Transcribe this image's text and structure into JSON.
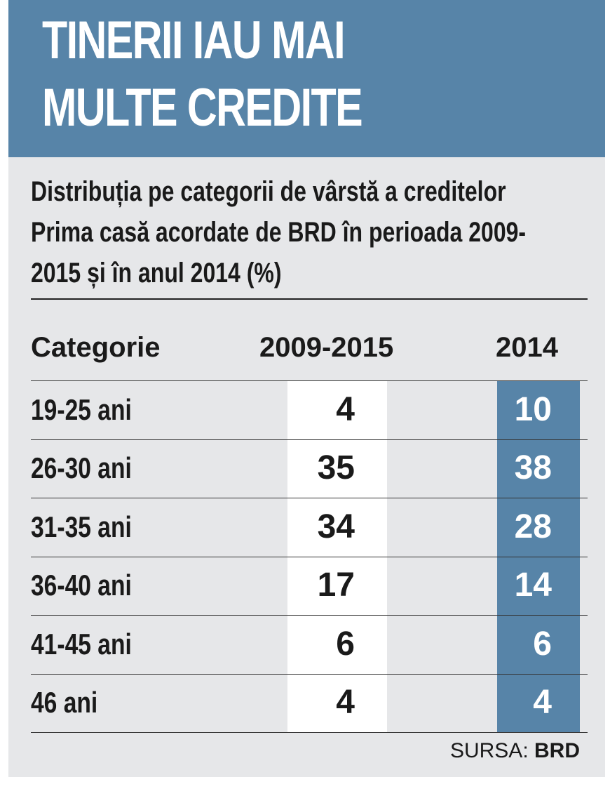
{
  "title": "TINERII IAU MAI MULTE CREDITE",
  "subtitle": "Distribuția pe categorii de vârstă a creditelor Prima casă acordate de BRD în perioada 2009-2015 și în anul 2014 (%)",
  "columns": {
    "category": "Categorie",
    "period": "2009-2015",
    "year": "2014"
  },
  "source": {
    "label": "SURSA:",
    "value": "BRD"
  },
  "colors": {
    "header_bg": "#5784a8",
    "panel_bg": "#e6e7e9",
    "highlight_col": "#5784a8"
  },
  "chart_data": {
    "type": "table",
    "title": "TINERII IAU MAI MULTE CREDITE",
    "columns": [
      "Categorie",
      "2009-2015",
      "2014"
    ],
    "rows": [
      {
        "category": "19-25 ani",
        "period": "4",
        "year": "10"
      },
      {
        "category": "26-30 ani",
        "period": "35",
        "year": "38"
      },
      {
        "category": "31-35 ani",
        "period": "34",
        "year": "28"
      },
      {
        "category": "36-40 ani",
        "period": "17",
        "year": "14"
      },
      {
        "category": "41-45 ani",
        "period": "6",
        "year": "6"
      },
      {
        "category": "46 ani",
        "period": "4",
        "year": "4"
      }
    ]
  }
}
